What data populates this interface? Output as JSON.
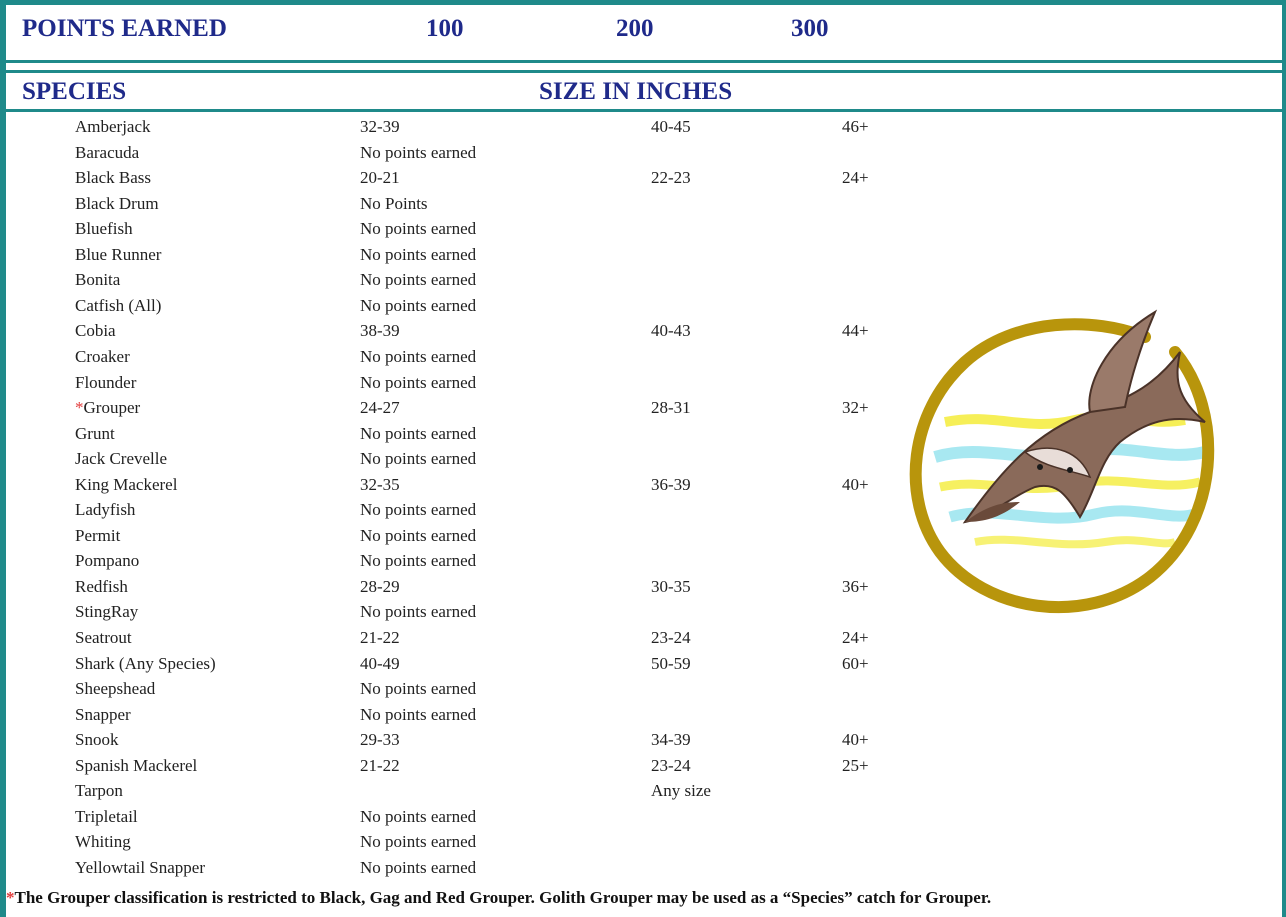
{
  "header": {
    "points_label": "POINTS EARNED",
    "p100": "100",
    "p200": "200",
    "p300": "300",
    "species_label": "SPECIES",
    "size_label": "SIZE IN INCHES"
  },
  "rows": [
    {
      "name": "Amberjack",
      "c1": "32-39",
      "c2": "40-45",
      "c3": "46+"
    },
    {
      "name": "Baracuda",
      "c1": "No points earned",
      "c2": "",
      "c3": ""
    },
    {
      "name": "Black Bass",
      "c1": "20-21",
      "c2": "22-23",
      "c3": "24+"
    },
    {
      "name": "Black Drum",
      "c1": "No Points",
      "c2": "",
      "c3": ""
    },
    {
      "name": "Bluefish",
      "c1": "No points earned",
      "c2": "",
      "c3": ""
    },
    {
      "name": "Blue Runner",
      "c1": "No points earned",
      "c2": "",
      "c3": ""
    },
    {
      "name": "Bonita",
      "c1": "No points earned",
      "c2": "",
      "c3": ""
    },
    {
      "name": "Catfish (All)",
      "c1": "No points earned",
      "c2": "",
      "c3": ""
    },
    {
      "name": "Cobia",
      "c1": "38-39",
      "c2": "40-43",
      "c3": "44+"
    },
    {
      "name": "Croaker",
      "c1": "No points earned",
      "c2": "",
      "c3": ""
    },
    {
      "name": "Flounder",
      "c1": "No points earned",
      "c2": "",
      "c3": ""
    },
    {
      "name": "Grouper",
      "asterisk": "*",
      "c1": "24-27",
      "c2": "28-31",
      "c3": "32+"
    },
    {
      "name": "Grunt",
      "c1": "No points earned",
      "c2": "",
      "c3": ""
    },
    {
      "name": "Jack Crevelle",
      "c1": "No points earned",
      "c2": "",
      "c3": ""
    },
    {
      "name": "King Mackerel",
      "c1": "32-35",
      "c2": "36-39",
      "c3": "40+"
    },
    {
      "name": "Ladyfish",
      "c1": "No points earned",
      "c2": "",
      "c3": ""
    },
    {
      "name": "Permit",
      "c1": "No points earned",
      "c2": "",
      "c3": ""
    },
    {
      "name": "Pompano",
      "c1": "No points earned",
      "c2": "",
      "c3": ""
    },
    {
      "name": "Redfish",
      "c1": "28-29",
      "c2": "30-35",
      "c3": "36+"
    },
    {
      "name": "StingRay",
      "c1": "No points earned",
      "c2": "",
      "c3": ""
    },
    {
      "name": "Seatrout",
      "c1": "21-22",
      "c2": "23-24",
      "c3": "24+"
    },
    {
      "name": "Shark (Any Species)",
      "c1": "40-49",
      "c2": "50-59",
      "c3": "60+"
    },
    {
      "name": "Sheepshead",
      "c1": "No points earned",
      "c2": "",
      "c3": ""
    },
    {
      "name": "Snapper",
      "c1": "No points earned",
      "c2": "",
      "c3": ""
    },
    {
      "name": "Snook",
      "c1": "29-33",
      "c2": "34-39",
      "c3": "40+"
    },
    {
      "name": "Spanish Mackerel",
      "c1": "21-22",
      "c2": "23-24",
      "c3": "25+"
    },
    {
      "name": "Tarpon",
      "c1": "",
      "c2": "Any size",
      "c3": ""
    },
    {
      "name": "Tripletail",
      "c1": "No points earned",
      "c2": "",
      "c3": ""
    },
    {
      "name": "Whiting",
      "c1": "No points earned",
      "c2": "",
      "c3": ""
    },
    {
      "name": "Yellowtail Snapper",
      "c1": "No points earned",
      "c2": "",
      "c3": ""
    }
  ],
  "footnote": {
    "asterisk": "*",
    "text": "The Grouper classification is restricted to Black, Gag and Red Grouper. Golith Grouper may be used as a “Species” catch for Grouper."
  },
  "colors": {
    "frame": "#1f8a8a",
    "heading": "#1f2a8a",
    "asterisk": "#e23a3a"
  },
  "illustration": "shark-in-ring-icon"
}
